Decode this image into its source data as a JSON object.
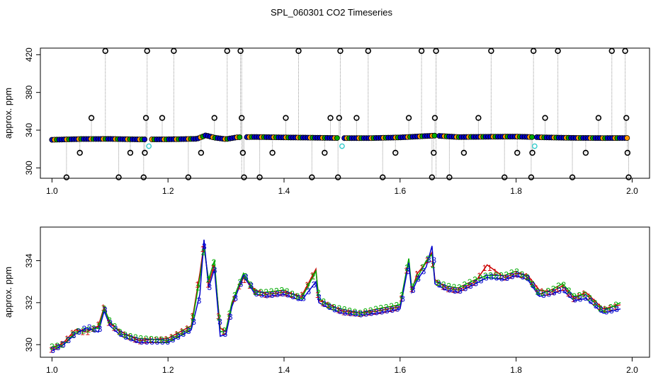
{
  "title": "SPL_060301  CO2 Timeseries",
  "colors": {
    "frame": "#000000",
    "marker_black": "#000000",
    "marker_blue": "#0000cc",
    "marker_green": "#00aa00",
    "marker_red": "#cc0000",
    "marker_cyan": "#33cccc",
    "marker_orange": "#ff9900",
    "drop_line": "#999999",
    "series_blue": "#0000cc",
    "series_green": "#00aa00",
    "series_red": "#cc0000"
  },
  "chart_data": [
    {
      "type": "scatter",
      "panel": "top",
      "ylabel": "approx. ppm",
      "xlabel": "",
      "xlim": [
        0.98,
        2.03
      ],
      "ylim": [
        289,
        427
      ],
      "xticks": [
        1.0,
        1.2,
        1.4,
        1.6,
        1.8,
        2.0
      ],
      "xtick_labels": [
        "1.0",
        "1.2",
        "1.4",
        "1.6",
        "1.8",
        "2.0"
      ],
      "yticks": [
        300,
        340,
        380,
        420
      ],
      "ytick_labels": [
        "300",
        "340",
        "380",
        "420"
      ],
      "baseline": [
        [
          1.0,
          329.8
        ],
        [
          1.05,
          330.6
        ],
        [
          1.1,
          330.7
        ],
        [
          1.15,
          330.2
        ],
        [
          1.2,
          330.3
        ],
        [
          1.25,
          330.8
        ],
        [
          1.265,
          334.5
        ],
        [
          1.28,
          332.0
        ],
        [
          1.3,
          330.5
        ],
        [
          1.32,
          332.5
        ],
        [
          1.35,
          332.8
        ],
        [
          1.4,
          332.3
        ],
        [
          1.45,
          332.0
        ],
        [
          1.5,
          331.6
        ],
        [
          1.55,
          331.6
        ],
        [
          1.6,
          332.3
        ],
        [
          1.64,
          333.6
        ],
        [
          1.66,
          334.2
        ],
        [
          1.7,
          332.7
        ],
        [
          1.75,
          333.0
        ],
        [
          1.8,
          333.2
        ],
        [
          1.85,
          332.3
        ],
        [
          1.9,
          331.8
        ],
        [
          1.95,
          331.6
        ],
        [
          1.99,
          331.7
        ]
      ],
      "outliers": [
        {
          "x": 1.025,
          "y": 290
        },
        {
          "x": 1.048,
          "y": 316
        },
        {
          "x": 1.068,
          "y": 353
        },
        {
          "x": 1.092,
          "y": 424
        },
        {
          "x": 1.115,
          "y": 290
        },
        {
          "x": 1.135,
          "y": 316
        },
        {
          "x": 1.158,
          "y": 290
        },
        {
          "x": 1.16,
          "y": 316
        },
        {
          "x": 1.162,
          "y": 353
        },
        {
          "x": 1.164,
          "y": 424
        },
        {
          "x": 1.19,
          "y": 353
        },
        {
          "x": 1.21,
          "y": 424
        },
        {
          "x": 1.235,
          "y": 290
        },
        {
          "x": 1.257,
          "y": 316
        },
        {
          "x": 1.28,
          "y": 353
        },
        {
          "x": 1.302,
          "y": 424
        },
        {
          "x": 1.325,
          "y": 424
        },
        {
          "x": 1.327,
          "y": 353
        },
        {
          "x": 1.329,
          "y": 316
        },
        {
          "x": 1.331,
          "y": 290
        },
        {
          "x": 1.358,
          "y": 290
        },
        {
          "x": 1.38,
          "y": 316
        },
        {
          "x": 1.403,
          "y": 353
        },
        {
          "x": 1.425,
          "y": 424
        },
        {
          "x": 1.448,
          "y": 290
        },
        {
          "x": 1.47,
          "y": 316
        },
        {
          "x": 1.48,
          "y": 353
        },
        {
          "x": 1.493,
          "y": 290
        },
        {
          "x": 1.495,
          "y": 353
        },
        {
          "x": 1.497,
          "y": 424
        },
        {
          "x": 1.525,
          "y": 353
        },
        {
          "x": 1.545,
          "y": 424
        },
        {
          "x": 1.57,
          "y": 290
        },
        {
          "x": 1.592,
          "y": 316
        },
        {
          "x": 1.615,
          "y": 353
        },
        {
          "x": 1.637,
          "y": 424
        },
        {
          "x": 1.655,
          "y": 290
        },
        {
          "x": 1.658,
          "y": 316
        },
        {
          "x": 1.66,
          "y": 353
        },
        {
          "x": 1.662,
          "y": 424
        },
        {
          "x": 1.685,
          "y": 290
        },
        {
          "x": 1.71,
          "y": 316
        },
        {
          "x": 1.735,
          "y": 353
        },
        {
          "x": 1.757,
          "y": 424
        },
        {
          "x": 1.78,
          "y": 290
        },
        {
          "x": 1.802,
          "y": 316
        },
        {
          "x": 1.826,
          "y": 290
        },
        {
          "x": 1.828,
          "y": 316
        },
        {
          "x": 1.83,
          "y": 424
        },
        {
          "x": 1.85,
          "y": 353
        },
        {
          "x": 1.872,
          "y": 424
        },
        {
          "x": 1.897,
          "y": 290
        },
        {
          "x": 1.92,
          "y": 316
        },
        {
          "x": 1.942,
          "y": 353
        },
        {
          "x": 1.965,
          "y": 424
        },
        {
          "x": 1.988,
          "y": 424
        },
        {
          "x": 1.99,
          "y": 353
        },
        {
          "x": 1.992,
          "y": 316
        },
        {
          "x": 1.994,
          "y": 290
        }
      ],
      "cyan_points": [
        {
          "x": 1.167,
          "y": 323
        },
        {
          "x": 1.5,
          "y": 323
        },
        {
          "x": 1.832,
          "y": 323
        }
      ]
    },
    {
      "type": "line",
      "panel": "bottom",
      "ylabel": "approx. ppm",
      "xlabel": "",
      "xlim": [
        0.98,
        2.03
      ],
      "ylim": [
        329.4,
        335.6
      ],
      "xticks": [
        1.0,
        1.2,
        1.4,
        1.6,
        1.8,
        2.0
      ],
      "xtick_labels": [
        "1.0",
        "1.2",
        "1.4",
        "1.6",
        "1.8",
        "2.0"
      ],
      "yticks": [
        330,
        332,
        334
      ],
      "ytick_labels": [
        "330",
        "332",
        "334"
      ],
      "series": [
        {
          "name": "1",
          "glyph": "1",
          "color": "red",
          "x": [
            1.0,
            1.02,
            1.04,
            1.06,
            1.08,
            1.09,
            1.1,
            1.12,
            1.15,
            1.2,
            1.24,
            1.255,
            1.262,
            1.27,
            1.28,
            1.29,
            1.3,
            1.31,
            1.33,
            1.35,
            1.37,
            1.4,
            1.43,
            1.455,
            1.46,
            1.48,
            1.5,
            1.53,
            1.56,
            1.6,
            1.615,
            1.62,
            1.63,
            1.645,
            1.655,
            1.66,
            1.68,
            1.7,
            1.73,
            1.75,
            1.78,
            1.8,
            1.82,
            1.84,
            1.86,
            1.88,
            1.9,
            1.92,
            1.95,
            1.98
          ],
          "y": [
            329.8,
            330.1,
            330.7,
            330.6,
            330.9,
            331.8,
            331.0,
            330.6,
            330.2,
            330.3,
            330.9,
            333.4,
            334.8,
            332.9,
            333.8,
            330.8,
            330.6,
            331.9,
            333.2,
            332.6,
            332.4,
            332.5,
            332.3,
            333.6,
            332.1,
            331.9,
            331.6,
            331.5,
            331.6,
            331.8,
            334.0,
            332.6,
            333.4,
            333.9,
            334.4,
            333.1,
            332.7,
            332.6,
            333.0,
            333.8,
            333.2,
            333.4,
            333.3,
            332.6,
            332.5,
            332.8,
            332.2,
            332.5,
            331.7,
            331.9
          ]
        },
        {
          "name": "2",
          "glyph": "2",
          "color": "green",
          "x": [
            1.0,
            1.02,
            1.04,
            1.06,
            1.08,
            1.09,
            1.1,
            1.12,
            1.15,
            1.2,
            1.24,
            1.255,
            1.262,
            1.27,
            1.28,
            1.29,
            1.3,
            1.31,
            1.33,
            1.35,
            1.37,
            1.4,
            1.43,
            1.455,
            1.46,
            1.48,
            1.5,
            1.53,
            1.56,
            1.6,
            1.615,
            1.62,
            1.63,
            1.645,
            1.655,
            1.66,
            1.68,
            1.7,
            1.73,
            1.75,
            1.78,
            1.8,
            1.82,
            1.84,
            1.86,
            1.88,
            1.9,
            1.92,
            1.95,
            1.98
          ],
          "y": [
            329.9,
            330.0,
            330.6,
            330.7,
            330.8,
            331.7,
            331.1,
            330.5,
            330.3,
            330.2,
            330.8,
            333.2,
            334.6,
            333.1,
            334.0,
            330.6,
            330.7,
            332.0,
            333.4,
            332.5,
            332.5,
            332.6,
            332.2,
            333.5,
            332.2,
            331.8,
            331.7,
            331.5,
            331.7,
            331.9,
            334.1,
            332.7,
            333.2,
            334.0,
            334.3,
            333.0,
            332.8,
            332.7,
            333.1,
            333.3,
            333.3,
            333.5,
            333.2,
            332.4,
            332.6,
            332.9,
            332.3,
            332.4,
            331.6,
            332.0
          ]
        },
        {
          "name": "3",
          "glyph": "3",
          "color": "blue",
          "x": [
            1.0,
            1.02,
            1.04,
            1.06,
            1.08,
            1.09,
            1.1,
            1.12,
            1.15,
            1.2,
            1.24,
            1.255,
            1.262,
            1.27,
            1.28,
            1.29,
            1.3,
            1.31,
            1.33,
            1.35,
            1.37,
            1.4,
            1.43,
            1.455,
            1.46,
            1.48,
            1.5,
            1.53,
            1.56,
            1.6,
            1.615,
            1.62,
            1.63,
            1.645,
            1.655,
            1.66,
            1.68,
            1.7,
            1.73,
            1.75,
            1.78,
            1.8,
            1.82,
            1.84,
            1.86,
            1.88,
            1.9,
            1.92,
            1.95,
            1.98
          ],
          "y": [
            329.7,
            330.0,
            330.5,
            330.8,
            330.6,
            331.6,
            330.9,
            330.4,
            330.1,
            330.1,
            330.7,
            332.4,
            335.0,
            332.7,
            333.6,
            330.4,
            330.5,
            331.8,
            333.3,
            332.4,
            332.3,
            332.4,
            332.1,
            333.0,
            332.0,
            331.7,
            331.5,
            331.4,
            331.5,
            331.7,
            333.9,
            332.5,
            333.1,
            333.7,
            334.7,
            332.9,
            332.6,
            332.5,
            332.9,
            333.2,
            333.1,
            333.3,
            333.1,
            332.3,
            332.4,
            332.6,
            332.1,
            332.2,
            331.5,
            331.7
          ]
        }
      ]
    }
  ]
}
